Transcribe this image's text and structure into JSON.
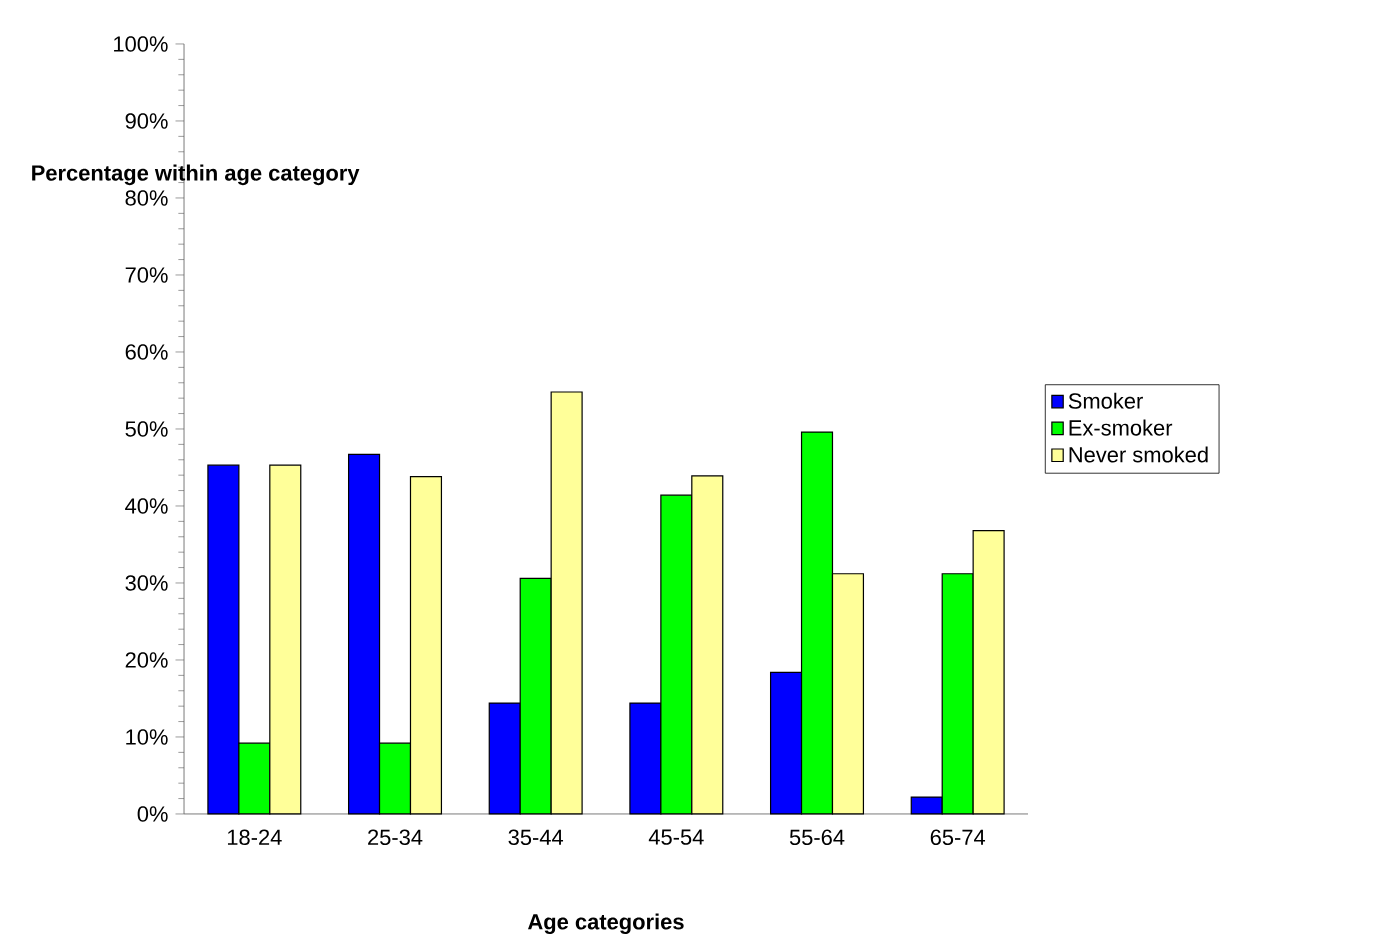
{
  "chart_data": {
    "type": "bar",
    "xlabel": "Age categories",
    "ylabel": "Percentage within age category",
    "categories": [
      "18-24",
      "25-34",
      "35-44",
      "45-54",
      "55-64",
      "65-74"
    ],
    "series": [
      {
        "name": "Smoker",
        "color": "#0000ff",
        "values": [
          45.3,
          46.7,
          14.4,
          14.4,
          18.4,
          2.2
        ]
      },
      {
        "name": "Ex-smoker",
        "color": "#00ff00",
        "values": [
          9.2,
          9.2,
          30.6,
          41.4,
          49.6,
          31.2
        ]
      },
      {
        "name": "Never smoked",
        "color": "#ffff99",
        "values": [
          45.3,
          43.8,
          54.8,
          43.9,
          31.2,
          36.8
        ]
      }
    ],
    "ylim": [
      0,
      100
    ],
    "yticks": [
      {
        "value": 0,
        "label": "0%"
      },
      {
        "value": 10,
        "label": "10%"
      },
      {
        "value": 20,
        "label": "20%"
      },
      {
        "value": 30,
        "label": "30%"
      },
      {
        "value": 40,
        "label": "40%"
      },
      {
        "value": 50,
        "label": "50%"
      },
      {
        "value": 60,
        "label": "60%"
      },
      {
        "value": 70,
        "label": "70%"
      },
      {
        "value": 80,
        "label": "80%"
      },
      {
        "value": 90,
        "label": "90%"
      },
      {
        "value": 100,
        "label": "100%"
      }
    ],
    "grid": false,
    "legend": "right"
  }
}
